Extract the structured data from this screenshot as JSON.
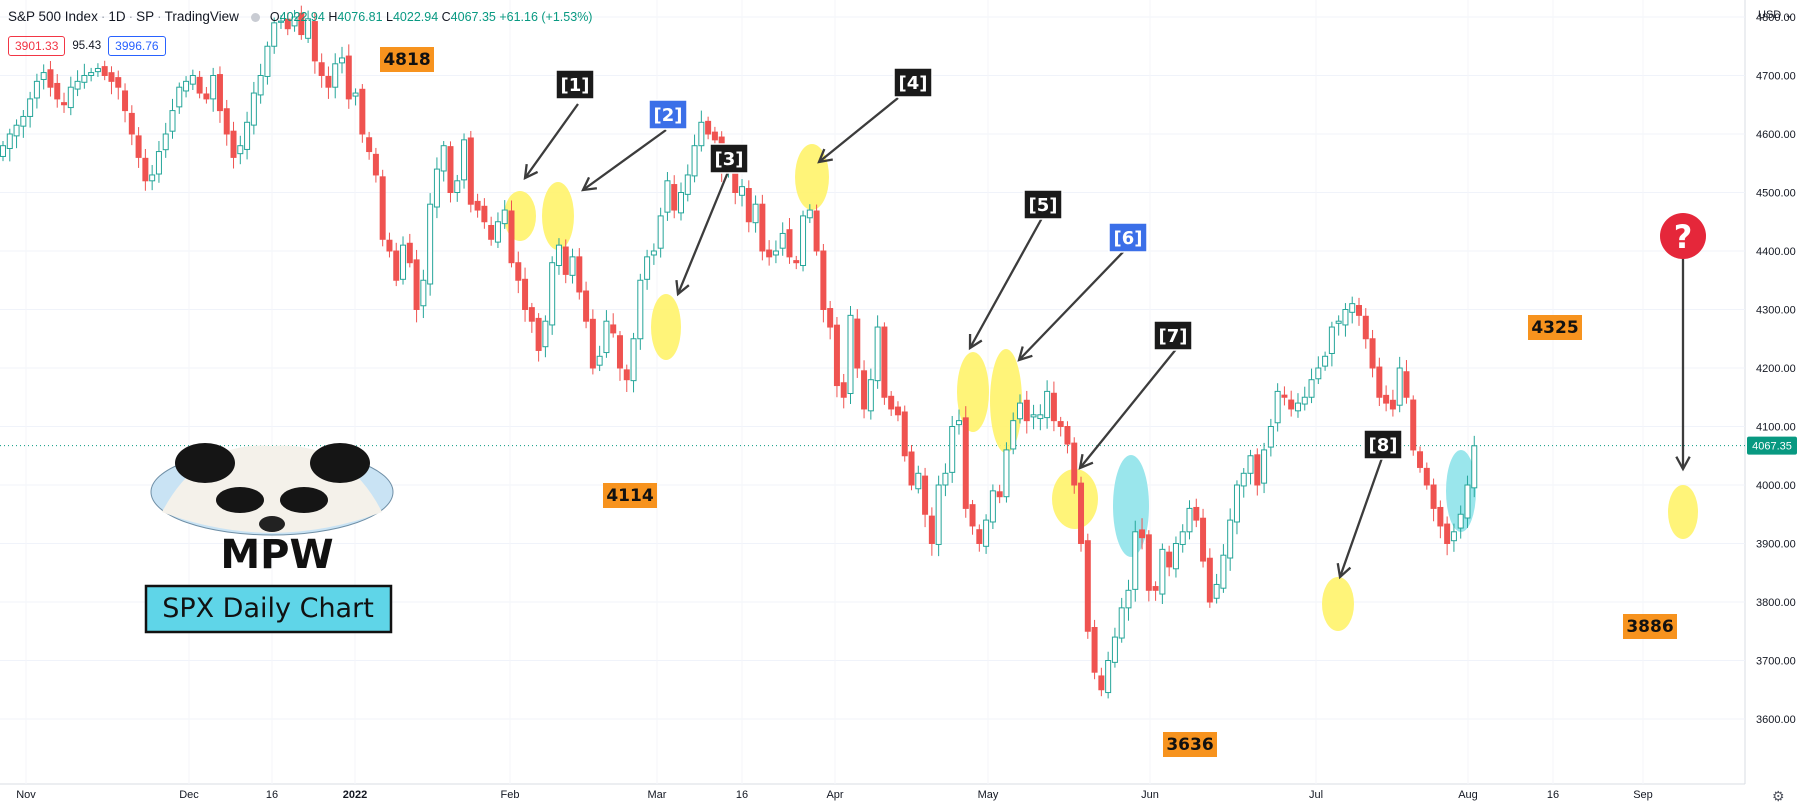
{
  "header": {
    "symbol": "S&P 500 Index",
    "interval": "1D",
    "exchange": "SP",
    "source": "TradingView",
    "ohlc": {
      "o_label": "O",
      "o": "4022.94",
      "h_label": "H",
      "h": "4076.81",
      "l_label": "L",
      "l": "4022.94",
      "c_label": "C",
      "c": "4067.35",
      "change": "+61.16 (+1.53%)"
    },
    "bid": "3901.33",
    "spread": "95.43",
    "ask": "3996.76"
  },
  "currency_label": "USD",
  "price_axis": {
    "ticks": [
      "4800.00",
      "4700.00",
      "4600.00",
      "4500.00",
      "4400.00",
      "4300.00",
      "4200.00",
      "4100.00",
      "4000.00",
      "3900.00",
      "3800.00",
      "3700.00",
      "3600.00"
    ],
    "last_price_label": "4067.35"
  },
  "time_axis": {
    "labels": [
      "Nov",
      "Dec",
      "16",
      "2022",
      "Feb",
      "Mar",
      "16",
      "Apr",
      "May",
      "Jun",
      "Jul",
      "Aug",
      "16",
      "Sep"
    ]
  },
  "watermark": {
    "logo_text": "MPW",
    "caption": "SPX Daily Chart"
  },
  "chart_data": {
    "type": "candlestick",
    "title": "",
    "ylim": [
      3600,
      4850
    ],
    "grid": true,
    "last_price": 4067.35,
    "level_labels": [
      "4818",
      "4114",
      "3636",
      "4325",
      "3886"
    ],
    "annotation_labels": [
      "[1]",
      "[2]",
      "[3]",
      "[4]",
      "[5]",
      "[6]",
      "[7]",
      "[8]"
    ],
    "question_marker": "?",
    "colors": {
      "up": "#26a69a",
      "down": "#ef5350",
      "level_label_bg": "#f7931e",
      "highlight_yellow": "#fff36a",
      "highlight_cyan": "#8fe3ea",
      "label_black": "#1a1a1a",
      "label_blue": "#3b6fe8"
    },
    "closes": [
      4580,
      4600,
      4615,
      4630,
      4660,
      4690,
      4705,
      4680,
      4660,
      4650,
      4680,
      4690,
      4700,
      4705,
      4712,
      4700,
      4690,
      4680,
      4640,
      4600,
      4560,
      4520,
      4530,
      4570,
      4600,
      4640,
      4680,
      4690,
      4700,
      4670,
      4660,
      4700,
      4640,
      4600,
      4560,
      4580,
      4620,
      4670,
      4700,
      4750,
      4790,
      4793,
      4780,
      4800,
      4770,
      4797,
      4725,
      4700,
      4680,
      4720,
      4730,
      4660,
      4670,
      4600,
      4570,
      4530,
      4420,
      4400,
      4350,
      4410,
      4380,
      4300,
      4350,
      4480,
      4540,
      4580,
      4500,
      4520,
      4590,
      4480,
      4470,
      4450,
      4420,
      4450,
      4470,
      4380,
      4350,
      4300,
      4280,
      4230,
      4280,
      4380,
      4410,
      4360,
      4390,
      4330,
      4280,
      4200,
      4220,
      4280,
      4260,
      4200,
      4180,
      4250,
      4350,
      4390,
      4400,
      4460,
      4520,
      4470,
      4500,
      4530,
      4580,
      4620,
      4600,
      4590,
      4540,
      4560,
      4500,
      4510,
      4450,
      4480,
      4400,
      4390,
      4400,
      4430,
      4390,
      4380,
      4460,
      4470,
      4400,
      4300,
      4270,
      4170,
      4150,
      4290,
      4200,
      4130,
      4180,
      4270,
      4150,
      4130,
      4120,
      4050,
      4000,
      4020,
      3950,
      3900,
      4000,
      4020,
      4100,
      4110,
      3960,
      3930,
      3900,
      3940,
      3990,
      3980,
      4060,
      4110,
      4140,
      4110,
      4120,
      4120,
      4160,
      4110,
      4100,
      4070,
      4000,
      3900,
      3750,
      3680,
      3650,
      3700,
      3740,
      3790,
      3820,
      3920,
      3910,
      3820,
      3820,
      3890,
      3860,
      3900,
      3920,
      3960,
      3940,
      3870,
      3800,
      3830,
      3880,
      3940,
      4000,
      4020,
      4050,
      4000,
      4060,
      4100,
      4160,
      4150,
      4130,
      4140,
      4150,
      4180,
      4200,
      4220,
      4270,
      4280,
      4300,
      4310,
      4290,
      4250,
      4200,
      4150,
      4140,
      4130,
      4200,
      4150,
      4060,
      4030,
      4000,
      3960,
      3930,
      3900,
      3920,
      3950,
      4000,
      4067
    ]
  }
}
